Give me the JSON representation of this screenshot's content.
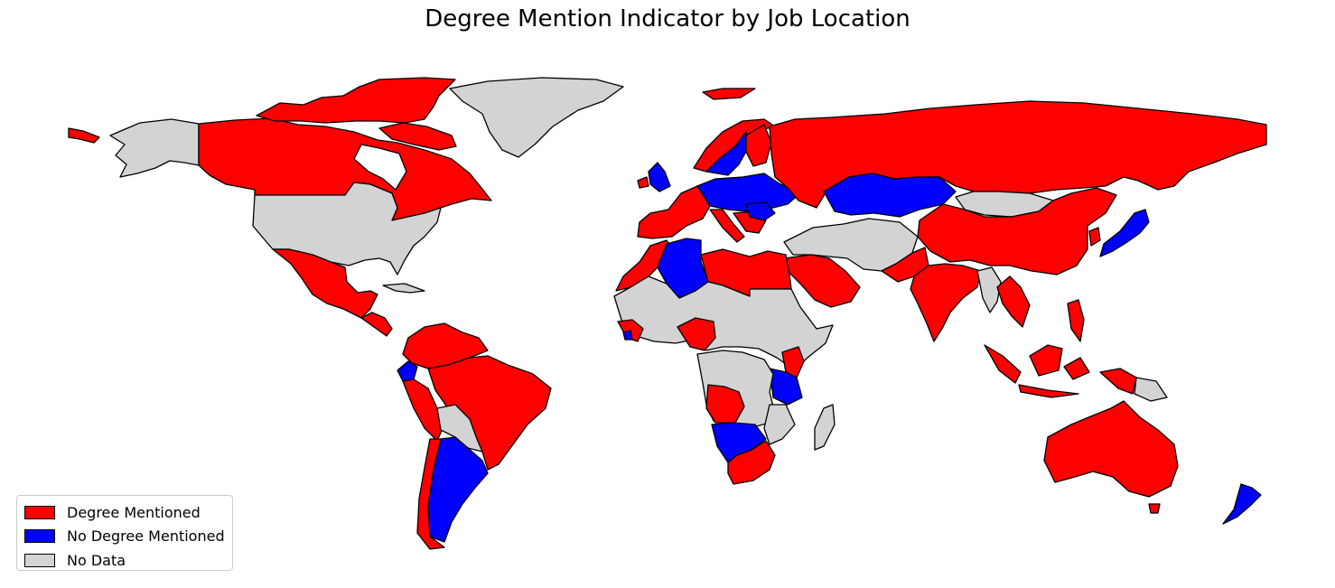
{
  "title": "Degree Mention Indicator by Job Location",
  "colors": {
    "degree": "#ff0000",
    "no_degree": "#0000ff",
    "no_data": "#d3d3d3"
  },
  "legend": {
    "placement": "lower-left",
    "items": [
      {
        "label": "Degree Mentioned",
        "key": "degree"
      },
      {
        "label": "No Degree Mentioned",
        "key": "no_degree"
      },
      {
        "label": "No Data",
        "key": "no_data"
      }
    ]
  },
  "countries": {
    "degree": [
      "Canada",
      "Mexico",
      "Guatemala",
      "Honduras",
      "Nicaragua",
      "Costa Rica",
      "Panama",
      "Colombia",
      "Venezuela",
      "Guyana",
      "Suriname",
      "Peru",
      "Bolivia",
      "Brazil",
      "Chile",
      "Iceland",
      "Ireland",
      "Norway",
      "Finland",
      "Estonia",
      "Latvia",
      "Lithuania",
      "Belarus",
      "Russia",
      "Portugal",
      "Spain",
      "France",
      "Belgium",
      "Netherlands",
      "Italy",
      "Greece",
      "Bulgaria",
      "Croatia",
      "Serbia",
      "Morocco",
      "Tunisia",
      "Libya",
      "Egypt",
      "Saudi Arabia",
      "United Arab Emirates",
      "Oman",
      "Pakistan",
      "India",
      "Sri Lanka",
      "Nepal",
      "Bangladesh",
      "Thailand",
      "Cambodia",
      "Vietnam",
      "Malaysia",
      "Philippines",
      "Indonesia",
      "Papua New Guinea",
      "China",
      "South Korea",
      "Australia",
      "Nigeria",
      "Senegal",
      "Guinea",
      "Angola",
      "Kenya",
      "Malawi",
      "South Africa"
    ],
    "no_degree": [
      "Ecuador",
      "Argentina",
      "Uruguay",
      "United Kingdom",
      "Sweden",
      "Denmark",
      "Germany",
      "Poland",
      "Czechia",
      "Slovakia",
      "Austria",
      "Hungary",
      "Romania",
      "Ukraine",
      "Moldova",
      "Switzerland",
      "Kazakhstan",
      "Algeria",
      "Sierra Leone",
      "Ghana",
      "Tanzania",
      "Namibia",
      "Botswana",
      "Japan",
      "New Zealand"
    ],
    "no_data": [
      "United States",
      "Alaska",
      "Greenland",
      "Cuba",
      "Paraguay",
      "French Guiana",
      "Mongolia",
      "Turkey",
      "Iran",
      "Iraq",
      "Syria",
      "Afghanistan",
      "Turkmenistan",
      "Uzbekistan",
      "Myanmar",
      "Laos",
      "Mali",
      "Niger",
      "Chad",
      "Sudan",
      "South Sudan",
      "Ethiopia",
      "Somalia",
      "Democratic Republic of the Congo",
      "Zambia",
      "Mozambique",
      "Madagascar",
      "Cameroon",
      "Central African Republic"
    ]
  }
}
